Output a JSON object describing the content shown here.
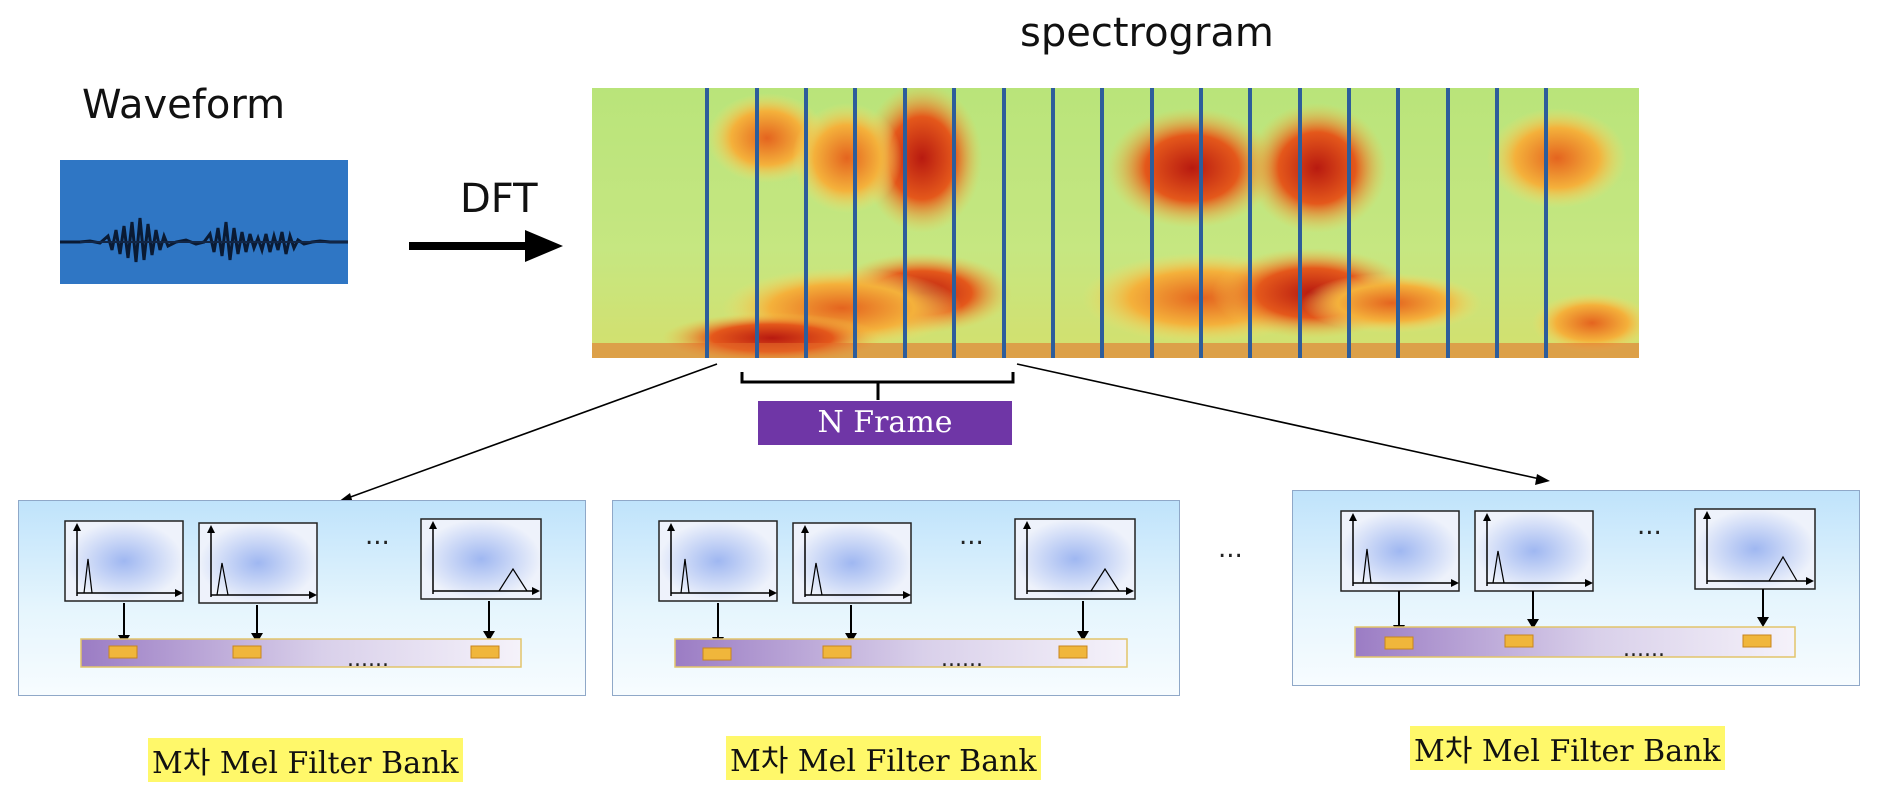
{
  "labels": {
    "waveform": "Waveform",
    "spectrogram": "spectrogram",
    "dft": "DFT",
    "n_frame": "N Frame",
    "bank_label": "M차 Mel Filter Bank",
    "gap_ellipsis": "...",
    "filter_ellipsis": "...",
    "bar_ellipsis": "......"
  },
  "colors": {
    "waveform_bg": "#2f76c4",
    "frame_line": "#2d5d9b",
    "n_frame_bg": "#6f36a6",
    "label_highlight": "#fff86a",
    "cell_fill": "#f0b63b"
  },
  "filter_banks": [
    {
      "label": "M차 Mel Filter Bank"
    },
    {
      "label": "M차 Mel Filter Bank"
    },
    {
      "label": "M차 Mel Filter Bank"
    }
  ]
}
